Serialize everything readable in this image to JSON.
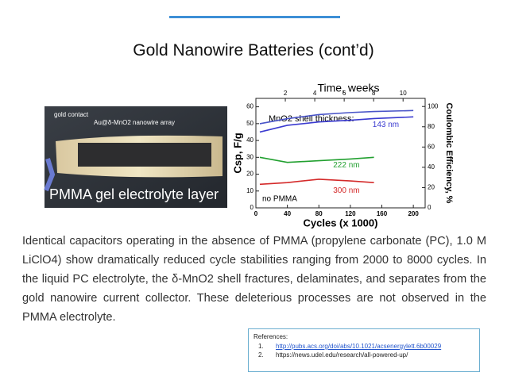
{
  "header": {
    "title": "Gold Nanowire Batteries (cont’d)"
  },
  "photo": {
    "labels": [
      "gold contact",
      "Au@δ-MnO2 nanowire array",
      "PMMA gel electrolyte layer"
    ]
  },
  "chart_data": {
    "type": "line",
    "xlabel": "Cycles (x 1000)",
    "ylabel": "Csp, F/g",
    "y2label": "Coulombic Efficiency, %",
    "x2label": "Time, weeks",
    "annotations": [
      "MnO2 shell thickness:",
      "no PMMA"
    ],
    "x": [
      5,
      40,
      80,
      120,
      150,
      200
    ],
    "xlim": [
      0,
      215
    ],
    "xticks": [
      0,
      40,
      80,
      120,
      160,
      200
    ],
    "x2lim": [
      0,
      11.5
    ],
    "x2ticks": [
      2,
      4,
      6,
      8,
      10
    ],
    "ylim": [
      0,
      65
    ],
    "yticks": [
      0,
      10,
      20,
      30,
      40,
      50,
      60
    ],
    "y2lim": [
      0,
      108
    ],
    "y2ticks": [
      0,
      20,
      40,
      60,
      80,
      100
    ],
    "series": [
      {
        "name": "143 nm",
        "color": "#3a3ad0",
        "values": [
          45,
          49,
          51,
          52,
          53,
          54
        ]
      },
      {
        "name": "222 nm",
        "color": "#22a030",
        "values": [
          30,
          27,
          28,
          29,
          30,
          null
        ]
      },
      {
        "name": "300 nm",
        "color": "#d42a2a",
        "values": [
          14,
          15,
          17,
          16,
          15,
          null
        ]
      },
      {
        "name": "Coulombic Efficiency",
        "color": "#4a55c8",
        "axis": "y2",
        "values": [
          83,
          88,
          92,
          94,
          95,
          96
        ]
      }
    ]
  },
  "body": {
    "paragraph": "Identical capacitors operating in the absence of PMMA (propylene carbonate (PC), 1.0 M LiClO4) show dramatically reduced cycle stabilities ranging from 2000 to 8000 cycles. In the liquid PC electrolyte, the δ-MnO2 shell fractures, delaminates, and separates from the gold nanowire current collector. These deleterious processes are not observed in the PMMA electrolyte."
  },
  "references": {
    "heading": "References:",
    "items": [
      {
        "number": "1.",
        "text": "http://pubs.acs.org/doi/abs/10.1021/acsenergylett.6b00029"
      },
      {
        "number": "2.",
        "text": "https://news.udel.edu/research/all-powered-up/"
      }
    ]
  }
}
